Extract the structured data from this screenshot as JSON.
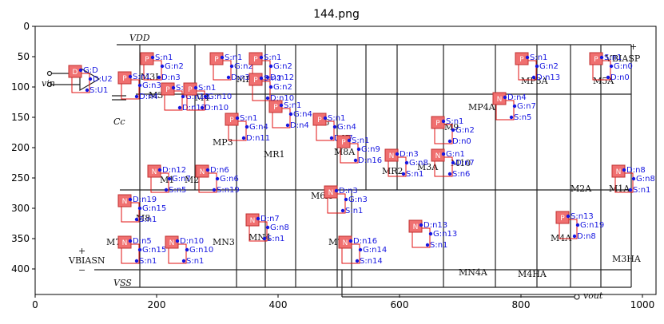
{
  "figure": {
    "title": "144.png",
    "x_ticks": [
      "0",
      "200",
      "400",
      "600",
      "800",
      "1000"
    ],
    "y_ticks": [
      "0",
      "50",
      "100",
      "150",
      "200",
      "250",
      "300",
      "350",
      "400"
    ]
  },
  "schematic": {
    "rail_labels": [
      "VDD",
      "VSS",
      "vin",
      "VBIASP",
      "VBIASN",
      "vout",
      "Cc",
      "+",
      "−"
    ],
    "device_labels": [
      "M3I",
      "M3",
      "M4",
      "MP4",
      "MP3",
      "M6",
      "M5",
      "M9",
      "M10",
      "MR1",
      "M8A",
      "MR2",
      "M3A",
      "MP4A",
      "MP3A",
      "M5A",
      "M1",
      "M2",
      "M8",
      "M7",
      "MN3",
      "MN4",
      "M6A",
      "M7A",
      "MN4A",
      "M4A",
      "M4HA",
      "M1A",
      "M2A",
      "M3HA"
    ]
  },
  "components": [
    {
      "tag": "D",
      "labels": [
        "G:D",
        "D:U2",
        "S:U1"
      ]
    },
    {
      "tag": "P",
      "labels": [
        "S:n1",
        "G:n2",
        "D:n3"
      ]
    },
    {
      "tag": "P",
      "labels": [
        "S:n1",
        "G:n2",
        "D:n3"
      ]
    },
    {
      "tag": "P",
      "labels": [
        "S:n1",
        "G:n2",
        "D:n12"
      ]
    },
    {
      "tag": "P",
      "labels": [
        "S:n1",
        "G:n2",
        "D:n10"
      ]
    },
    {
      "tag": "P",
      "labels": [
        "S:n1",
        "G:n3",
        "D:n4"
      ]
    },
    {
      "tag": "P",
      "labels": [
        "S:n1",
        "G:n12",
        "D:n12"
      ]
    },
    {
      "tag": "P",
      "labels": [
        "S:n1",
        "G:n10",
        "D:n10"
      ]
    },
    {
      "tag": "P",
      "labels": [
        "S:n1",
        "G:n4",
        "D:n11"
      ]
    },
    {
      "tag": "P",
      "labels": [
        "S:n1",
        "G:n4",
        "D:n4"
      ]
    },
    {
      "tag": "P",
      "labels": [
        "S:n1",
        "G:n4",
        "D:n7"
      ]
    },
    {
      "tag": "P",
      "labels": [
        "S:n1",
        "G:n9",
        "D:n16"
      ]
    },
    {
      "tag": "P",
      "labels": [
        "S:n1",
        "G:n2",
        "D:n0"
      ]
    },
    {
      "tag": "P",
      "labels": [
        "S:n1",
        "G:n2",
        "D:n13"
      ]
    },
    {
      "tag": "P",
      "labels": [
        "S:n1",
        "G:n0",
        "D:n0"
      ]
    },
    {
      "tag": "N",
      "labels": [
        "D:n4",
        "G:n7",
        "S:n5"
      ]
    },
    {
      "tag": "N",
      "labels": [
        "D:n12",
        "G:n7",
        "S:n5"
      ]
    },
    {
      "tag": "N",
      "labels": [
        "D:n6",
        "G:n6",
        "S:n19"
      ]
    },
    {
      "tag": "N",
      "labels": [
        "D:n19",
        "G:n15",
        "S:n1"
      ]
    },
    {
      "tag": "N",
      "labels": [
        "D:n5",
        "G:n15",
        "S:n1"
      ]
    },
    {
      "tag": "N",
      "labels": [
        "D:n10",
        "G:n10",
        "S:n1"
      ]
    },
    {
      "tag": "N",
      "labels": [
        "D:n7",
        "G:n8",
        "S:n1"
      ]
    },
    {
      "tag": "N",
      "labels": [
        "D:n3",
        "G:n3",
        "S:n1"
      ]
    },
    {
      "tag": "N",
      "labels": [
        "D:n16",
        "G:n14",
        "S:n14"
      ]
    },
    {
      "tag": "N",
      "labels": [
        "G:n1",
        "D:n7",
        "S:n6"
      ]
    },
    {
      "tag": "N",
      "labels": [
        "D:n3",
        "G:n8",
        "S:n1"
      ]
    },
    {
      "tag": "N",
      "labels": [
        "D:n13",
        "G:n13",
        "S:n1"
      ]
    },
    {
      "tag": "P",
      "labels": [
        "S:n13",
        "G:n19",
        "D:n8"
      ]
    },
    {
      "tag": "N",
      "labels": [
        "D:n8",
        "G:n8",
        "S:n1"
      ]
    }
  ]
}
